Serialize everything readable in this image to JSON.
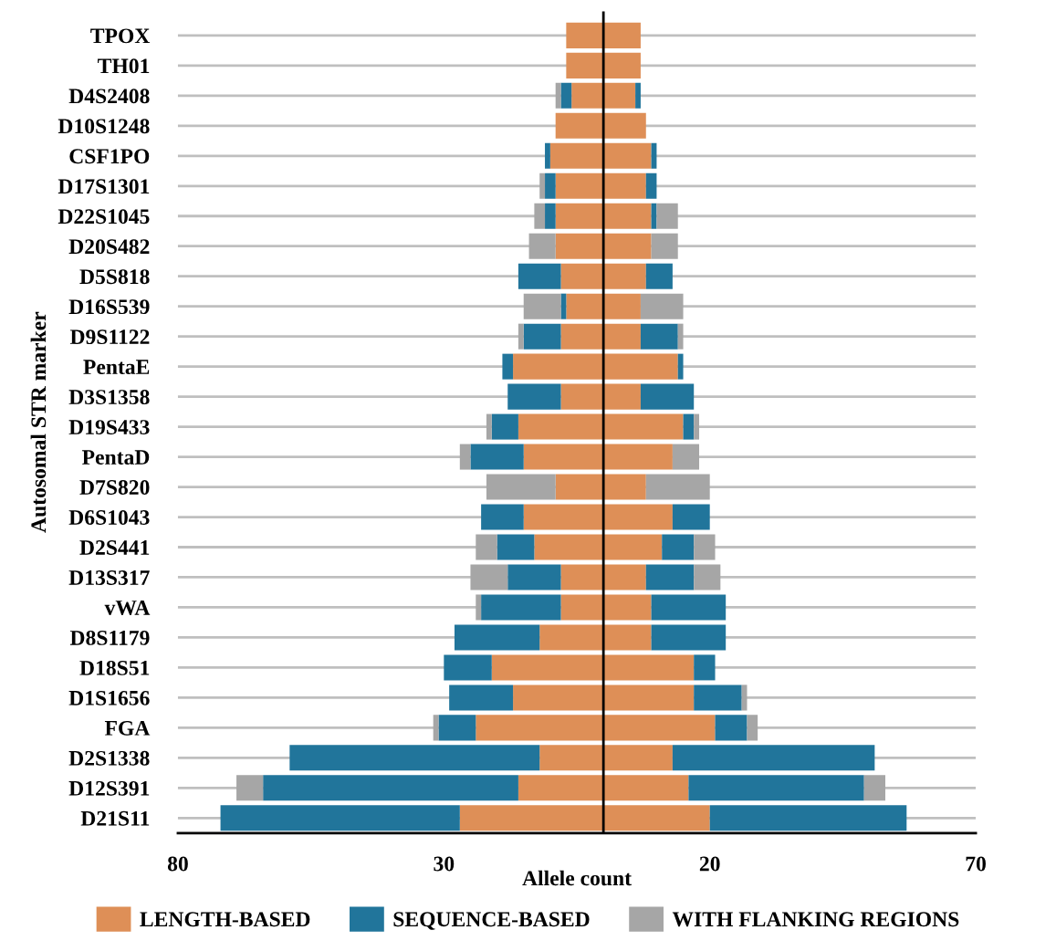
{
  "chart_data": {
    "type": "bar",
    "orientation": "horizontal",
    "stacked": true,
    "xlabel": "Allele count",
    "ylabel": "Autosomal STR marker",
    "categories": [
      "TPOX",
      "TH01",
      "D4S2408",
      "D10S1248",
      "CSF1PO",
      "D17S1301",
      "D22S1045",
      "D20S482",
      "D5S818",
      "D16S539",
      "D9S1122",
      "PentaE",
      "D3S1358",
      "D19S433",
      "PentaD",
      "D7S820",
      "D6S1043",
      "D2S441",
      "D13S317",
      "vWA",
      "D8S1179",
      "D18S51",
      "D1S1656",
      "FGA",
      "D2S1338",
      "D12S391",
      "D21S11"
    ],
    "series": [
      {
        "name": "LENGTH-BASED",
        "color": "#de8f57",
        "values": [
          -7,
          -7,
          -6,
          -9,
          -10,
          -9,
          -9,
          -9,
          -8,
          -7,
          -8,
          -17,
          -8,
          -16,
          -15,
          -9,
          -15,
          -13,
          -8,
          -8,
          -12,
          -21,
          -17,
          -24,
          -12,
          -16,
          -27
        ]
      },
      {
        "name": "SEQUENCE-BASED",
        "color": "#21759b",
        "values": [
          0,
          0,
          -2,
          0,
          -1,
          -2,
          -2,
          0,
          -8,
          -1,
          -7,
          -2,
          -10,
          -5,
          -10,
          0,
          -8,
          -7,
          -10,
          -15,
          -16,
          -9,
          -12,
          -7,
          -47,
          -48,
          -45
        ]
      },
      {
        "name": "WITH FLANKING REGIONS",
        "color": "#a6a6a6",
        "values": [
          0,
          0,
          -1,
          0,
          0,
          -1,
          -2,
          -5,
          0,
          -7,
          -1,
          0,
          0,
          -1,
          -2,
          -13,
          0,
          -4,
          -7,
          -1,
          0,
          0,
          0,
          -1,
          0,
          -5,
          0
        ]
      },
      {
        "color": "#de8f57",
        "values": [
          7,
          7,
          6,
          8,
          9,
          8,
          9,
          9,
          8,
          7,
          7,
          14,
          7,
          15,
          13,
          8,
          13,
          11,
          8,
          9,
          9,
          17,
          17,
          21,
          13,
          16,
          20
        ]
      },
      {
        "color": "#21759b",
        "values": [
          0,
          0,
          1,
          0,
          1,
          2,
          1,
          0,
          5,
          0,
          7,
          1,
          10,
          2,
          0,
          0,
          7,
          6,
          9,
          14,
          14,
          4,
          9,
          6,
          38,
          33,
          37
        ]
      },
      {
        "color": "#a6a6a6",
        "values": [
          0,
          0,
          0,
          0,
          0,
          0,
          4,
          5,
          0,
          8,
          1,
          0,
          0,
          1,
          5,
          12,
          0,
          4,
          5,
          0,
          0,
          0,
          1,
          2,
          0,
          4,
          0
        ]
      }
    ],
    "xlim": [
      -80,
      70
    ],
    "xticks": [
      {
        "value": -80,
        "label": "80"
      },
      {
        "value": -30,
        "label": "30"
      },
      20,
      70
    ],
    "ref_lines": [
      {
        "axis": "x",
        "value": 0,
        "color": "#000000"
      }
    ],
    "grid": "y",
    "legend": "bottom"
  }
}
